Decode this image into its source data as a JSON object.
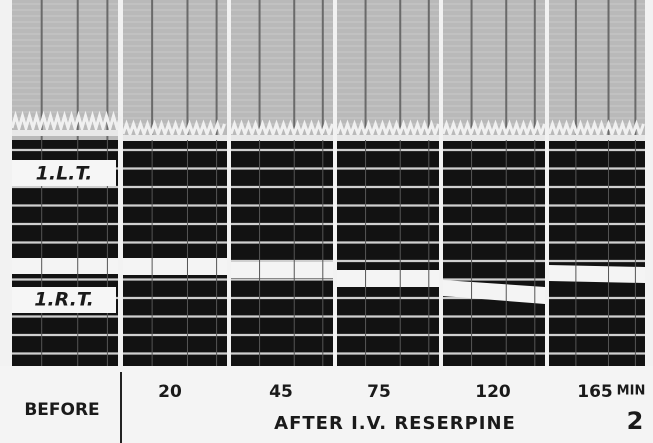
{
  "figure": {
    "trace_labels": [
      "1.L.T.",
      "1.R.T."
    ],
    "before": "BEFORE",
    "times": [
      "20",
      "45",
      "75",
      "120",
      "165"
    ],
    "unit": "MIN",
    "caption": "AFTER I.V. RESERPINE",
    "figure_number": "2"
  }
}
